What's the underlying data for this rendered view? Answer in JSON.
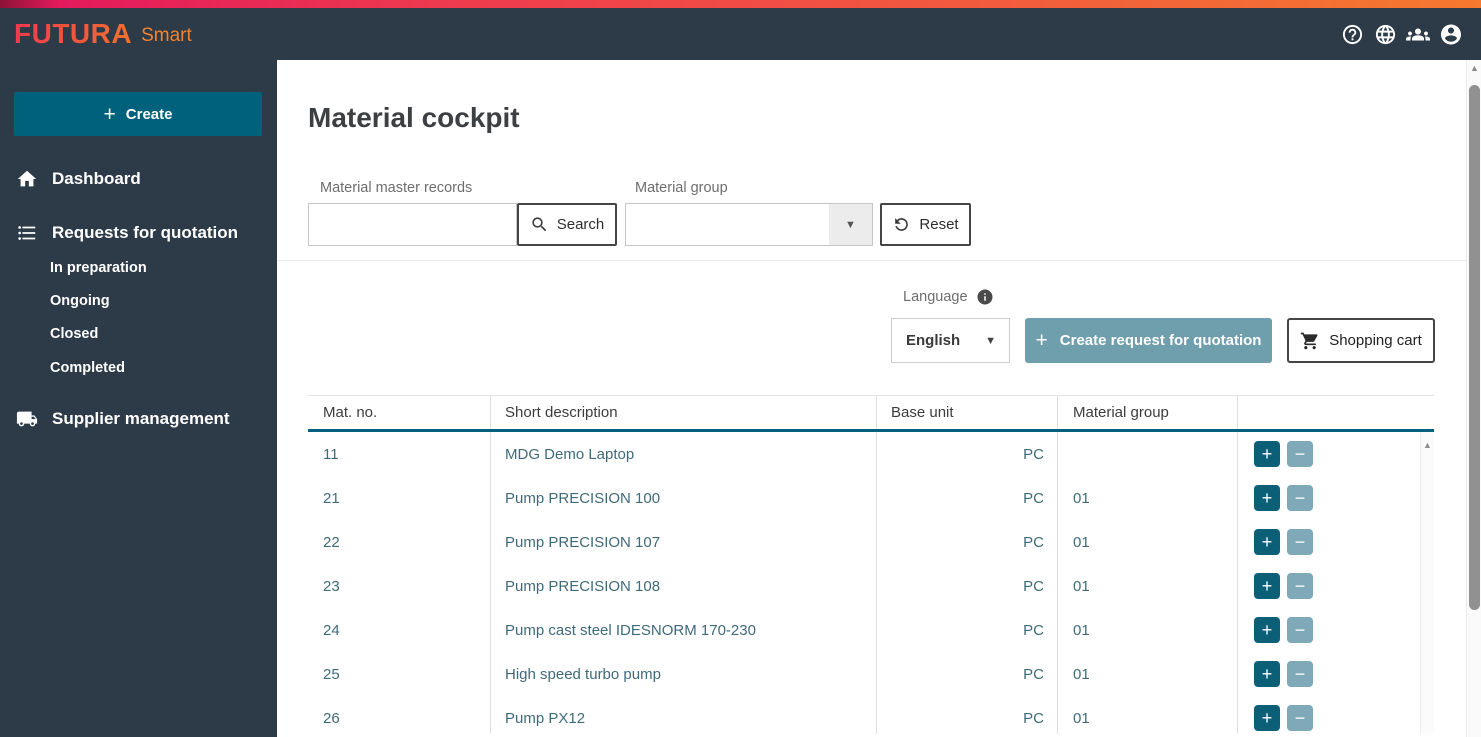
{
  "colors": {
    "top_strip_start": "#e41a5c",
    "top_strip_end": "#f5792e",
    "header_bg": "#2d3a48",
    "brand_gradient_start": "#f23a4e",
    "brand_gradient_end": "#f2712c",
    "primary_teal": "#00617c",
    "rfq_button_bg": "#6f9eac",
    "plus_button_bg": "#0b6078",
    "minus_button_bg": "#7fa9b8",
    "table_text": "#3f6a7a",
    "table_header_border": "#00617f"
  },
  "brand": {
    "name": "FUTURA",
    "suffix": "Smart"
  },
  "sidebar": {
    "create_button": {
      "icon": "+",
      "label": "Create"
    },
    "items": [
      {
        "label": "Dashboard"
      },
      {
        "label": "Requests for quotation",
        "children": [
          {
            "label": "In preparation"
          },
          {
            "label": "Ongoing"
          },
          {
            "label": "Closed"
          },
          {
            "label": "Completed"
          }
        ]
      },
      {
        "label": "Supplier management"
      }
    ]
  },
  "main": {
    "title": "Material cockpit",
    "filters": {
      "material_master_label": "Material master records",
      "material_master_value": "",
      "search_button": "Search",
      "material_group_label": "Material group",
      "material_group_value": "",
      "dropdown_caret": "▼",
      "reset_button": "Reset"
    },
    "actions": {
      "language_label": "Language",
      "language_value": "English",
      "language_caret": "▼",
      "create_rfq_plus": "+",
      "create_rfq_button": "Create request for quotation",
      "shopping_cart_button": "Shopping cart"
    },
    "table": {
      "columns": [
        "Mat. no.",
        "Short description",
        "Base unit",
        "Material group",
        ""
      ],
      "plus_icon": "+",
      "minus_icon": "−",
      "scroll_up_glyph": "▲",
      "rows": [
        {
          "mat_no": "11",
          "description": "MDG Demo Laptop",
          "base_unit": "PC",
          "material_group": ""
        },
        {
          "mat_no": "21",
          "description": "Pump PRECISION 100",
          "base_unit": "PC",
          "material_group": "01"
        },
        {
          "mat_no": "22",
          "description": "Pump PRECISION 107",
          "base_unit": "PC",
          "material_group": "01"
        },
        {
          "mat_no": "23",
          "description": "Pump PRECISION 108",
          "base_unit": "PC",
          "material_group": "01"
        },
        {
          "mat_no": "24",
          "description": "Pump cast steel IDESNORM 170-230",
          "base_unit": "PC",
          "material_group": "01"
        },
        {
          "mat_no": "25",
          "description": "High speed turbo pump",
          "base_unit": "PC",
          "material_group": "01"
        },
        {
          "mat_no": "26",
          "description": "Pump PX12",
          "base_unit": "PC",
          "material_group": "01"
        }
      ]
    }
  }
}
